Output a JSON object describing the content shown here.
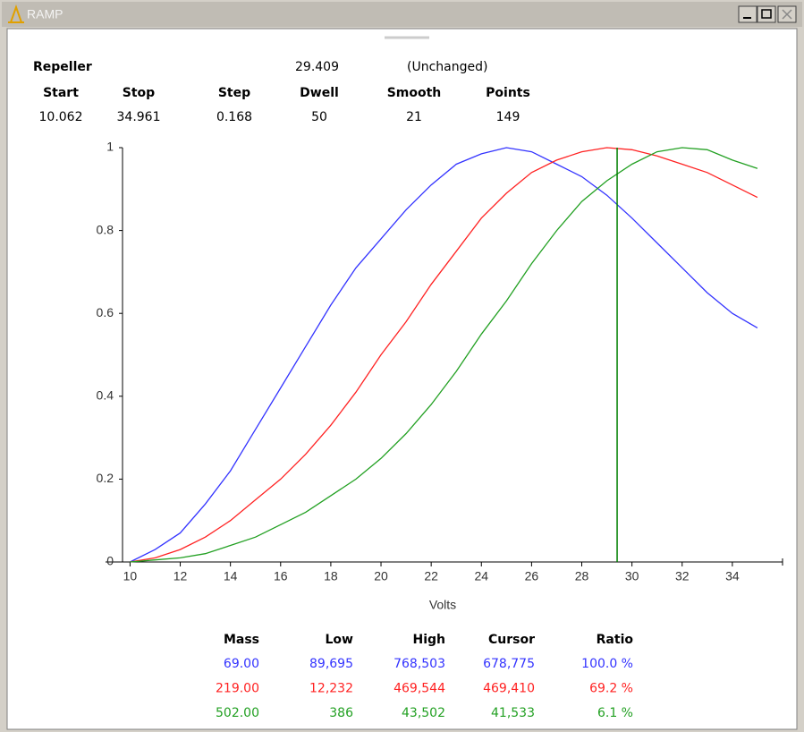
{
  "window": {
    "title": "RAMP"
  },
  "header": {
    "name": "Repeller",
    "status": "(Unchanged)"
  },
  "params": {
    "columns": [
      "Start",
      "Stop",
      "Step",
      "Dwell",
      "Smooth",
      "Points"
    ],
    "values": [
      "10.062",
      "34.961",
      "0.168",
      "50",
      "21",
      "149"
    ]
  },
  "chart_data": {
    "type": "line",
    "x_label": "Volts",
    "x": [
      10,
      11,
      12,
      13,
      14,
      15,
      16,
      17,
      18,
      19,
      20,
      21,
      22,
      23,
      24,
      25,
      26,
      27,
      28,
      29,
      30,
      31,
      32,
      33,
      34,
      35
    ],
    "series": [
      {
        "color": "#3333ff",
        "values": [
          0,
          0.03,
          0.07,
          0.14,
          0.22,
          0.32,
          0.42,
          0.52,
          0.62,
          0.71,
          0.78,
          0.85,
          0.91,
          0.96,
          0.985,
          1.0,
          0.99,
          0.96,
          0.93,
          0.885,
          0.83,
          0.77,
          0.71,
          0.65,
          0.6,
          0.565
        ]
      },
      {
        "color": "#ff2222",
        "values": [
          0,
          0.01,
          0.03,
          0.06,
          0.1,
          0.15,
          0.2,
          0.26,
          0.33,
          0.41,
          0.5,
          0.58,
          0.67,
          0.75,
          0.83,
          0.89,
          0.94,
          0.97,
          0.99,
          1.0,
          0.995,
          0.98,
          0.96,
          0.94,
          0.91,
          0.88
        ]
      },
      {
        "color": "#22a022",
        "values": [
          0,
          0.005,
          0.01,
          0.02,
          0.04,
          0.06,
          0.09,
          0.12,
          0.16,
          0.2,
          0.25,
          0.31,
          0.38,
          0.46,
          0.55,
          0.63,
          0.72,
          0.8,
          0.87,
          0.92,
          0.96,
          0.99,
          1.0,
          0.995,
          0.97,
          0.95
        ]
      }
    ],
    "cursor": 29.409,
    "cursor_color": "#007f00",
    "xlim": [
      9.7,
      36
    ],
    "xticks": [
      10,
      12,
      14,
      16,
      18,
      20,
      22,
      24,
      26,
      28,
      30,
      32,
      34
    ],
    "ylim": [
      0,
      1
    ],
    "yticks": [
      0,
      0.2,
      0.4,
      0.6,
      0.8,
      1
    ]
  },
  "results": {
    "columns": [
      "Mass",
      "Low",
      "High",
      "Cursor",
      "Ratio"
    ],
    "rows": [
      [
        "69.00",
        "89,695",
        "768,503",
        "678,775",
        "100.0 %"
      ],
      [
        "219.00",
        "12,232",
        "469,544",
        "469,410",
        "69.2 %"
      ],
      [
        "502.00",
        "386",
        "43,502",
        "41,533",
        "6.1 %"
      ]
    ]
  }
}
